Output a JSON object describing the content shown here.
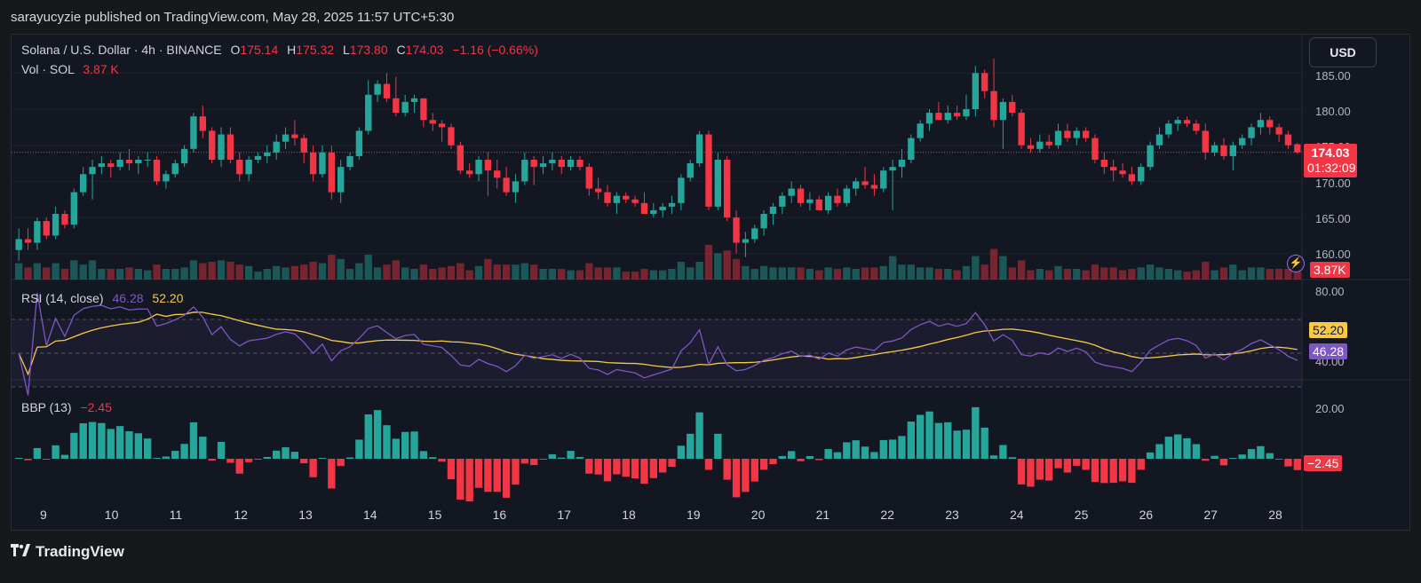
{
  "header": {
    "publisher_line": "sarayucyzie published on TradingView.com, May 28, 2025 11:57 UTC+5:30"
  },
  "main_legend": {
    "symbol": "Solana / U.S. Dollar · 4h · BINANCE",
    "o_label": "O",
    "o_value": "175.14",
    "h_label": "H",
    "h_value": "175.32",
    "l_label": "L",
    "l_value": "173.80",
    "c_label": "C",
    "c_value": "174.03",
    "change": "−1.16 (−0.66%)"
  },
  "volume_legend": {
    "label": "Vol · SOL",
    "value": "3.87 K"
  },
  "rsi_legend": {
    "label": "RSI (14, close)",
    "value_1": "46.28",
    "value_2": "52.20"
  },
  "bbp_legend": {
    "label": "BBP (13)",
    "value": "−2.45"
  },
  "currency_button": "USD",
  "price_axis": [
    "185.00",
    "180.00",
    "175.00",
    "170.00",
    "165.00",
    "160.00"
  ],
  "current_price_tag": {
    "price": "174.03",
    "countdown": "01:32:09"
  },
  "volume_tag": "3.87K",
  "rsi_axis": [
    "80.00",
    "40.00"
  ],
  "rsi_tags": {
    "ma": "52.20",
    "rsi": "46.28"
  },
  "bbp_axis": [
    "20.00"
  ],
  "bbp_tag": "−2.45",
  "x_axis": [
    "9",
    "10",
    "11",
    "12",
    "13",
    "14",
    "15",
    "16",
    "17",
    "18",
    "19",
    "20",
    "21",
    "22",
    "23",
    "24",
    "25",
    "26",
    "27",
    "28"
  ],
  "footer": {
    "brand": "TradingView",
    "logo": "tv-logo"
  },
  "colors": {
    "up": "#26a69a",
    "down": "#f23645",
    "background": "#131722",
    "rsi_line": "#7e57c2",
    "rsi_ma": "#f7c948"
  },
  "chart_data": {
    "type": "candlestick",
    "interval": "4h",
    "price_range": [
      158.5,
      187.5
    ],
    "candles_ohlc_approx": [
      [
        160.5,
        163.5,
        159.0,
        162.0
      ],
      [
        162.0,
        163.5,
        160.5,
        161.5
      ],
      [
        161.5,
        165.0,
        160.5,
        164.5
      ],
      [
        164.5,
        165.0,
        162.0,
        162.5
      ],
      [
        162.5,
        166.5,
        162.0,
        165.5
      ],
      [
        165.5,
        166.0,
        163.5,
        164.0
      ],
      [
        164.0,
        169.0,
        163.5,
        168.5
      ],
      [
        168.5,
        172.0,
        168.0,
        171.0
      ],
      [
        171.0,
        173.0,
        167.5,
        172.0
      ],
      [
        172.0,
        173.5,
        171.0,
        172.5
      ],
      [
        172.5,
        173.0,
        170.5,
        172.0
      ],
      [
        172.0,
        174.0,
        171.5,
        173.0
      ],
      [
        173.0,
        174.5,
        171.5,
        172.5
      ],
      [
        172.5,
        173.5,
        171.0,
        173.0
      ],
      [
        173.0,
        174.0,
        172.0,
        173.0
      ],
      [
        173.0,
        173.5,
        169.5,
        170.0
      ],
      [
        170.0,
        171.5,
        169.0,
        171.0
      ],
      [
        171.0,
        173.0,
        170.5,
        172.5
      ],
      [
        172.5,
        175.0,
        172.0,
        174.5
      ],
      [
        174.5,
        179.5,
        174.0,
        179.0
      ],
      [
        179.0,
        180.5,
        176.0,
        177.0
      ],
      [
        177.0,
        177.5,
        172.5,
        173.0
      ],
      [
        173.0,
        177.5,
        172.0,
        176.5
      ],
      [
        176.5,
        177.5,
        172.5,
        173.0
      ],
      [
        173.0,
        174.0,
        170.0,
        171.0
      ],
      [
        171.0,
        173.5,
        170.0,
        173.0
      ],
      [
        173.0,
        174.0,
        172.5,
        173.5
      ],
      [
        173.5,
        175.0,
        172.5,
        174.0
      ],
      [
        174.0,
        176.5,
        173.0,
        175.5
      ],
      [
        175.5,
        177.5,
        174.5,
        176.5
      ],
      [
        176.5,
        178.5,
        175.0,
        176.0
      ],
      [
        176.0,
        176.5,
        172.5,
        174.0
      ],
      [
        174.0,
        175.0,
        170.0,
        171.0
      ],
      [
        171.0,
        175.0,
        170.5,
        174.0
      ],
      [
        174.0,
        175.0,
        167.5,
        168.5
      ],
      [
        168.5,
        173.0,
        167.0,
        172.0
      ],
      [
        172.0,
        174.0,
        171.5,
        173.5
      ],
      [
        173.5,
        177.5,
        173.0,
        177.0
      ],
      [
        177.0,
        184.0,
        176.5,
        182.0
      ],
      [
        182.0,
        184.0,
        181.0,
        183.5
      ],
      [
        183.5,
        185.0,
        181.0,
        181.5
      ],
      [
        181.5,
        184.5,
        179.0,
        179.5
      ],
      [
        179.5,
        182.0,
        179.0,
        181.0
      ],
      [
        181.0,
        182.0,
        179.5,
        181.5
      ],
      [
        181.5,
        181.5,
        177.5,
        178.5
      ],
      [
        178.5,
        179.5,
        177.0,
        178.0
      ],
      [
        178.0,
        178.5,
        175.5,
        177.5
      ],
      [
        177.5,
        178.0,
        174.5,
        175.0
      ],
      [
        175.0,
        175.5,
        171.0,
        171.5
      ],
      [
        171.5,
        172.5,
        170.5,
        171.0
      ],
      [
        171.0,
        173.5,
        170.0,
        173.0
      ],
      [
        173.0,
        174.0,
        168.0,
        171.5
      ],
      [
        171.5,
        173.0,
        169.0,
        170.5
      ],
      [
        170.5,
        172.0,
        168.0,
        168.5
      ],
      [
        168.5,
        171.0,
        167.0,
        170.0
      ],
      [
        170.0,
        174.0,
        169.5,
        173.0
      ],
      [
        173.0,
        173.5,
        169.5,
        172.0
      ],
      [
        172.0,
        173.5,
        171.0,
        172.5
      ],
      [
        172.5,
        174.0,
        171.5,
        173.0
      ],
      [
        173.0,
        173.5,
        171.0,
        172.0
      ],
      [
        172.0,
        173.5,
        171.5,
        173.0
      ],
      [
        173.0,
        173.5,
        171.5,
        172.0
      ],
      [
        172.0,
        172.5,
        168.0,
        169.0
      ],
      [
        169.0,
        170.5,
        167.5,
        168.5
      ],
      [
        168.5,
        169.5,
        166.5,
        167.0
      ],
      [
        167.0,
        168.5,
        165.5,
        168.0
      ],
      [
        168.0,
        168.5,
        167.0,
        167.5
      ],
      [
        167.5,
        168.0,
        166.5,
        167.0
      ],
      [
        167.0,
        168.5,
        166.0,
        165.5
      ],
      [
        165.5,
        167.0,
        165.0,
        166.0
      ],
      [
        166.0,
        167.0,
        165.0,
        166.5
      ],
      [
        166.5,
        168.0,
        165.5,
        167.0
      ],
      [
        167.0,
        171.0,
        166.0,
        170.5
      ],
      [
        170.5,
        173.0,
        170.0,
        172.5
      ],
      [
        172.5,
        177.0,
        172.0,
        176.5
      ],
      [
        176.5,
        177.0,
        166.0,
        166.5
      ],
      [
        166.5,
        174.0,
        166.0,
        173.0
      ],
      [
        173.0,
        173.5,
        164.5,
        165.0
      ],
      [
        165.0,
        166.0,
        160.0,
        161.5
      ],
      [
        161.5,
        163.0,
        159.5,
        162.0
      ],
      [
        162.0,
        164.0,
        161.5,
        163.5
      ],
      [
        163.5,
        166.0,
        162.5,
        165.5
      ],
      [
        165.5,
        167.0,
        164.0,
        166.5
      ],
      [
        166.5,
        168.5,
        165.5,
        168.0
      ],
      [
        168.0,
        170.0,
        167.0,
        169.0
      ],
      [
        169.0,
        169.5,
        166.5,
        167.0
      ],
      [
        167.0,
        168.5,
        166.0,
        167.5
      ],
      [
        167.5,
        168.0,
        166.0,
        166.0
      ],
      [
        166.0,
        168.5,
        165.5,
        168.0
      ],
      [
        168.0,
        169.0,
        166.5,
        167.0
      ],
      [
        167.0,
        169.5,
        166.5,
        169.0
      ],
      [
        169.0,
        170.5,
        168.0,
        170.0
      ],
      [
        170.0,
        172.0,
        169.0,
        169.5
      ],
      [
        169.5,
        171.0,
        168.0,
        169.0
      ],
      [
        169.0,
        172.0,
        168.5,
        171.5
      ],
      [
        171.5,
        173.0,
        166.0,
        172.0
      ],
      [
        172.0,
        174.5,
        170.5,
        173.0
      ],
      [
        173.0,
        176.5,
        172.5,
        176.0
      ],
      [
        176.0,
        178.5,
        175.5,
        178.0
      ],
      [
        178.0,
        180.0,
        177.0,
        179.5
      ],
      [
        179.5,
        181.0,
        178.5,
        178.5
      ],
      [
        178.5,
        180.5,
        178.0,
        179.5
      ],
      [
        179.5,
        180.5,
        178.5,
        179.0
      ],
      [
        179.0,
        182.0,
        178.5,
        180.0
      ],
      [
        180.0,
        186.0,
        179.0,
        185.0
      ],
      [
        185.0,
        185.5,
        181.5,
        182.5
      ],
      [
        182.5,
        187.0,
        177.5,
        178.5
      ],
      [
        178.5,
        181.5,
        174.5,
        181.0
      ],
      [
        181.0,
        182.0,
        179.0,
        179.5
      ],
      [
        179.5,
        180.0,
        174.5,
        175.0
      ],
      [
        175.0,
        176.0,
        174.0,
        174.5
      ],
      [
        174.5,
        176.5,
        174.0,
        175.5
      ],
      [
        175.5,
        176.5,
        174.5,
        175.0
      ],
      [
        175.0,
        178.0,
        174.5,
        177.0
      ],
      [
        177.0,
        178.0,
        175.5,
        176.0
      ],
      [
        176.0,
        177.5,
        175.0,
        177.0
      ],
      [
        177.0,
        177.5,
        175.5,
        176.0
      ],
      [
        176.0,
        176.5,
        172.5,
        173.0
      ],
      [
        173.0,
        174.0,
        171.0,
        172.0
      ],
      [
        172.0,
        173.0,
        170.0,
        171.5
      ],
      [
        171.5,
        172.5,
        170.5,
        171.0
      ],
      [
        171.0,
        172.0,
        169.5,
        170.0
      ],
      [
        170.0,
        172.5,
        169.5,
        172.0
      ],
      [
        172.0,
        175.5,
        171.5,
        175.0
      ],
      [
        175.0,
        177.5,
        174.5,
        176.5
      ],
      [
        176.5,
        178.5,
        176.0,
        178.0
      ],
      [
        178.0,
        179.0,
        177.0,
        178.5
      ],
      [
        178.5,
        179.0,
        177.5,
        178.0
      ],
      [
        178.0,
        178.5,
        176.5,
        177.0
      ],
      [
        177.0,
        178.0,
        173.0,
        174.0
      ],
      [
        174.0,
        175.5,
        173.5,
        175.0
      ],
      [
        175.0,
        176.0,
        173.0,
        173.5
      ],
      [
        173.5,
        175.5,
        171.5,
        175.0
      ],
      [
        175.0,
        176.5,
        174.5,
        176.0
      ],
      [
        176.0,
        178.0,
        175.0,
        177.5
      ],
      [
        177.5,
        179.5,
        176.5,
        178.5
      ],
      [
        178.5,
        179.0,
        176.5,
        177.5
      ],
      [
        177.5,
        178.0,
        175.5,
        176.5
      ],
      [
        176.5,
        177.0,
        174.5,
        175.0
      ],
      [
        175.14,
        175.32,
        173.8,
        174.03
      ]
    ],
    "rsi": {
      "range": [
        30,
        90
      ],
      "levels": [
        70,
        50,
        30
      ],
      "current": 46.28,
      "ma_current": 52.2
    },
    "bbp": {
      "current": -2.45
    }
  }
}
